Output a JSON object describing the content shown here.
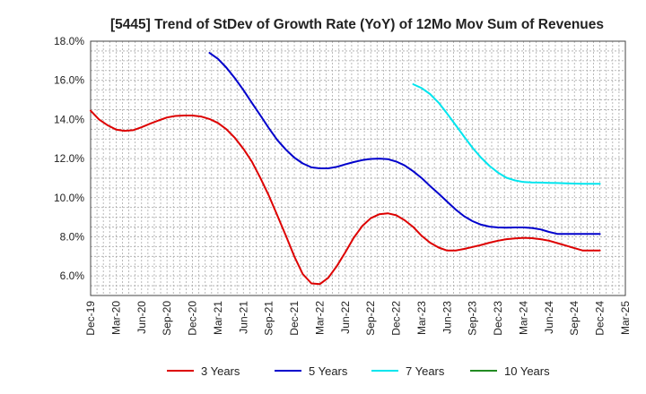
{
  "chart_data": {
    "type": "line",
    "title": "[5445]  Trend of StDev of Growth Rate (YoY) of 12Mo Mov Sum of Revenues",
    "xlabel": "",
    "ylabel": "",
    "x_ticks": [
      "Dec-19",
      "Mar-20",
      "Jun-20",
      "Sep-20",
      "Dec-20",
      "Mar-21",
      "Jun-21",
      "Sep-21",
      "Dec-21",
      "Mar-22",
      "Jun-22",
      "Sep-22",
      "Dec-22",
      "Mar-23",
      "Jun-23",
      "Sep-23",
      "Dec-23",
      "Mar-24",
      "Jun-24",
      "Sep-24",
      "Dec-24",
      "Mar-25"
    ],
    "y_ticks": [
      "6.0%",
      "8.0%",
      "10.0%",
      "12.0%",
      "14.0%",
      "16.0%",
      "18.0%"
    ],
    "y_tick_values": [
      6,
      8,
      10,
      12,
      14,
      16,
      18
    ],
    "ylim": [
      5.0,
      18.0
    ],
    "xlim": [
      0,
      21
    ],
    "grid": true,
    "legend_position": "bottom",
    "series": [
      {
        "name": "3 Years",
        "color": "#dd0000",
        "x": [
          0,
          0.33,
          0.67,
          1,
          1.33,
          1.67,
          2,
          2.33,
          2.67,
          3,
          3.33,
          3.67,
          4,
          4.33,
          4.67,
          5,
          5.33,
          5.67,
          6,
          6.33,
          6.67,
          7,
          7.33,
          7.67,
          8,
          8.33,
          8.67,
          9,
          9.33,
          9.67,
          10,
          10.33,
          10.67,
          11,
          11.33,
          11.67,
          12,
          12.33,
          12.67,
          13,
          13.33,
          13.67,
          14,
          14.33,
          14.67,
          15,
          15.33,
          15.67,
          16,
          16.33,
          16.67,
          17,
          17.33,
          17.67,
          18,
          18.33,
          18.67,
          19,
          19.33,
          19.67,
          20
        ],
        "values": [
          14.45,
          14.0,
          13.7,
          13.48,
          13.42,
          13.45,
          13.6,
          13.78,
          13.95,
          14.1,
          14.18,
          14.2,
          14.2,
          14.15,
          14.02,
          13.82,
          13.5,
          13.05,
          12.5,
          11.85,
          11.0,
          10.1,
          9.1,
          8.05,
          7.0,
          6.1,
          5.62,
          5.58,
          5.9,
          6.5,
          7.2,
          7.95,
          8.55,
          8.95,
          9.15,
          9.2,
          9.1,
          8.85,
          8.5,
          8.05,
          7.7,
          7.45,
          7.3,
          7.3,
          7.38,
          7.48,
          7.58,
          7.7,
          7.8,
          7.88,
          7.92,
          7.95,
          7.93,
          7.88,
          7.8,
          7.68,
          7.55,
          7.42,
          7.3,
          7.3,
          7.3
        ]
      },
      {
        "name": "5 Years",
        "color": "#0000cc",
        "x": [
          4.67,
          5,
          5.33,
          5.67,
          6,
          6.33,
          6.67,
          7,
          7.33,
          7.67,
          8,
          8.33,
          8.67,
          9,
          9.33,
          9.67,
          10,
          10.33,
          10.67,
          11,
          11.33,
          11.67,
          12,
          12.33,
          12.67,
          13,
          13.33,
          13.67,
          14,
          14.33,
          14.67,
          15,
          15.33,
          15.67,
          16,
          16.33,
          16.67,
          17,
          17.33,
          17.67,
          18,
          18.33,
          18.67,
          19,
          19.33,
          19.67,
          20
        ],
        "values": [
          17.4,
          17.1,
          16.65,
          16.1,
          15.5,
          14.85,
          14.2,
          13.55,
          12.95,
          12.45,
          12.05,
          11.75,
          11.55,
          11.5,
          11.5,
          11.58,
          11.7,
          11.82,
          11.92,
          11.98,
          12.0,
          11.97,
          11.85,
          11.65,
          11.35,
          11.0,
          10.6,
          10.2,
          9.8,
          9.4,
          9.05,
          8.8,
          8.62,
          8.52,
          8.48,
          8.47,
          8.48,
          8.48,
          8.45,
          8.38,
          8.25,
          8.15,
          8.15,
          8.15,
          8.15,
          8.15,
          8.15
        ]
      },
      {
        "name": "7 Years",
        "color": "#00e5ee",
        "x": [
          12.67,
          13,
          13.33,
          13.67,
          14,
          14.33,
          14.67,
          15,
          15.33,
          15.67,
          16,
          16.33,
          16.67,
          17,
          17.33,
          17.67,
          18,
          18.33,
          18.67,
          19,
          19.33,
          19.67,
          20
        ],
        "values": [
          15.8,
          15.6,
          15.3,
          14.85,
          14.3,
          13.72,
          13.12,
          12.55,
          12.05,
          11.62,
          11.28,
          11.02,
          10.88,
          10.8,
          10.78,
          10.77,
          10.76,
          10.75,
          10.73,
          10.72,
          10.71,
          10.71,
          10.71
        ]
      },
      {
        "name": "10 Years",
        "color": "#228b22",
        "x": [],
        "values": []
      }
    ]
  }
}
